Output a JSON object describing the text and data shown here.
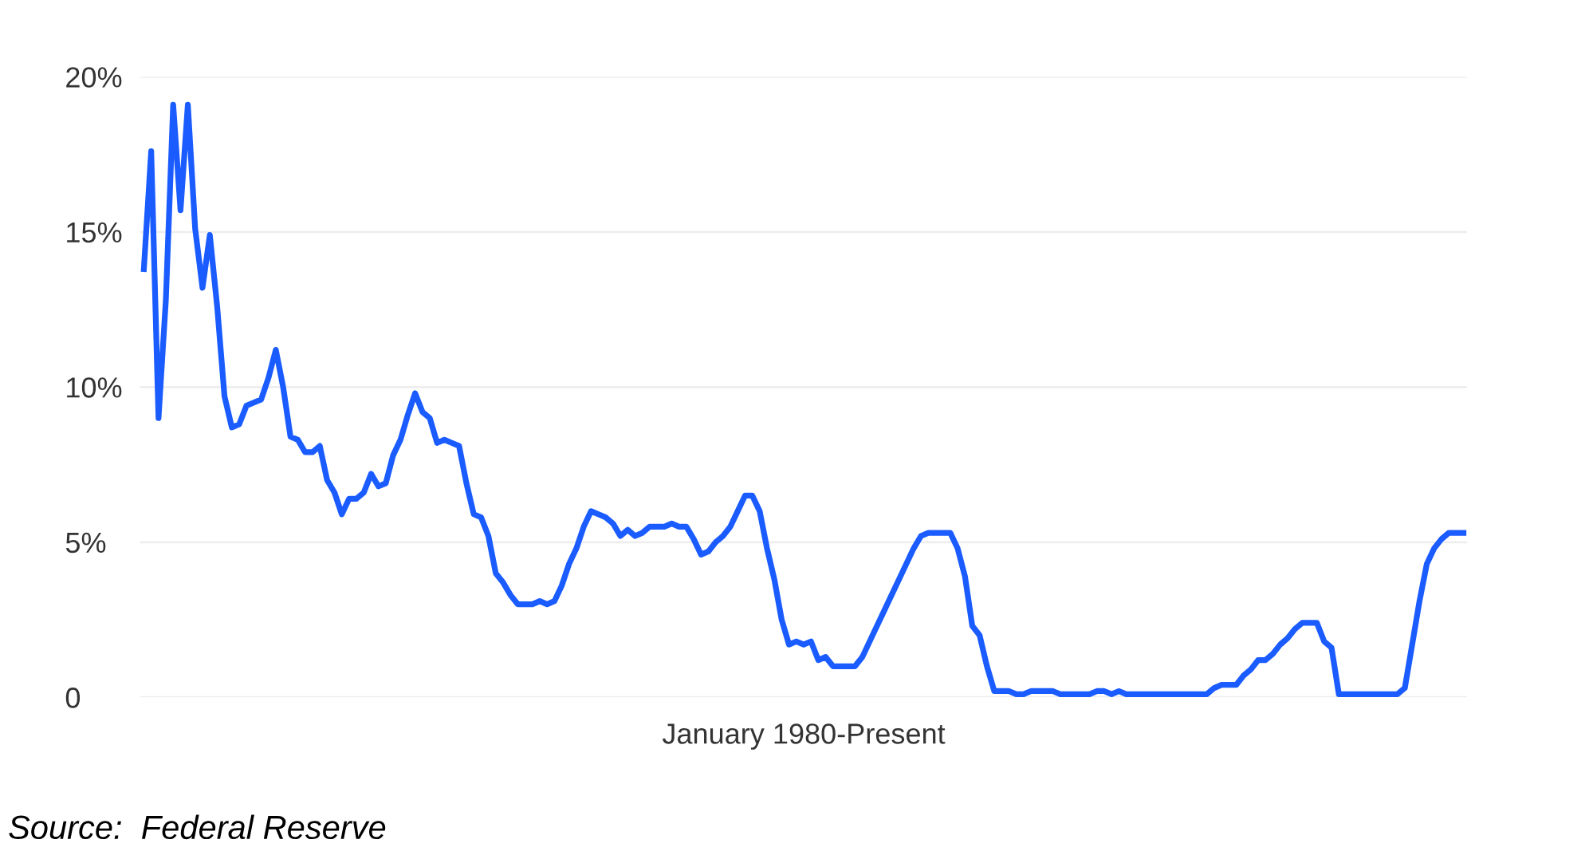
{
  "chart_data": {
    "type": "line",
    "xlabel": "January 1980-Present",
    "annotations": [
      "Source:  Federal Reserve"
    ],
    "categories": [
      null,
      null,
      null,
      null,
      null,
      null,
      null,
      null,
      null,
      null,
      null,
      null,
      null,
      null,
      null,
      null,
      null,
      null,
      null,
      null,
      null,
      null,
      null,
      null,
      null,
      null,
      null,
      null,
      null,
      null,
      null,
      null,
      null,
      null,
      null,
      null,
      null,
      null,
      null,
      null,
      null,
      null,
      null,
      null,
      null,
      null,
      null,
      null,
      null,
      null,
      null,
      null,
      null,
      null,
      null,
      null,
      null,
      null,
      null,
      null,
      null,
      null,
      null,
      null,
      null,
      null,
      null,
      null,
      null,
      null,
      null,
      null,
      null,
      null,
      null,
      null,
      null,
      null,
      null,
      null,
      null,
      null,
      null,
      null,
      null,
      null,
      null,
      null,
      null,
      null,
      null,
      null,
      null,
      null,
      null,
      null,
      null,
      null,
      null,
      null,
      null,
      null,
      null,
      null,
      null,
      null,
      null,
      null,
      null,
      null,
      null,
      null,
      null,
      null,
      null,
      null,
      null,
      null,
      null,
      null,
      null,
      null,
      null,
      null,
      null,
      null,
      null,
      null,
      null,
      null,
      null,
      null,
      null,
      null,
      null,
      null,
      null,
      null,
      null,
      null,
      null,
      null,
      null,
      null,
      null,
      null,
      null,
      null,
      null,
      null,
      null,
      null,
      null,
      null,
      null,
      null,
      null,
      null,
      null,
      null,
      null,
      null,
      null,
      null,
      null,
      null,
      null,
      null,
      null,
      null,
      null,
      null,
      null,
      null,
      null,
      null,
      null,
      null,
      null,
      null,
      null
    ],
    "series": [
      {
        "color": "#1a5cff",
        "values": [
          13.8,
          17.6,
          9.0,
          12.8,
          19.1,
          15.7,
          19.1,
          15.1,
          13.2,
          14.9,
          12.6,
          9.7,
          8.7,
          8.8,
          9.4,
          9.5,
          9.6,
          10.3,
          11.2,
          10.0,
          8.4,
          8.3,
          7.9,
          7.9,
          8.1,
          7.0,
          6.6,
          5.9,
          6.4,
          6.4,
          6.6,
          7.2,
          6.8,
          6.9,
          7.8,
          8.3,
          9.1,
          9.8,
          9.2,
          9.0,
          8.2,
          8.3,
          8.2,
          8.1,
          6.9,
          5.9,
          5.8,
          5.2,
          4.0,
          3.7,
          3.3,
          3.0,
          3.0,
          3.0,
          3.1,
          3.0,
          3.1,
          3.6,
          4.3,
          4.8,
          5.5,
          6.0,
          5.9,
          5.8,
          5.6,
          5.2,
          5.4,
          5.2,
          5.3,
          5.5,
          5.5,
          5.5,
          5.6,
          5.5,
          5.5,
          5.1,
          4.6,
          4.7,
          5.0,
          5.2,
          5.5,
          6.0,
          6.5,
          6.5,
          6.0,
          4.8,
          3.8,
          2.5,
          1.7,
          1.8,
          1.7,
          1.8,
          1.2,
          1.3,
          1.0,
          1.0,
          1.0,
          1.0,
          1.3,
          1.8,
          2.3,
          2.8,
          3.3,
          3.8,
          4.3,
          4.8,
          5.2,
          5.3,
          5.3,
          5.3,
          5.3,
          4.8,
          3.9,
          2.3,
          2.0,
          1.0,
          0.2,
          0.2,
          0.2,
          0.1,
          0.1,
          0.2,
          0.2,
          0.2,
          0.2,
          0.1,
          0.1,
          0.1,
          0.1,
          0.1,
          0.2,
          0.2,
          0.1,
          0.2,
          0.1,
          0.1,
          0.1,
          0.1,
          0.1,
          0.1,
          0.1,
          0.1,
          0.1,
          0.1,
          0.1,
          0.1,
          0.3,
          0.4,
          0.4,
          0.4,
          0.7,
          0.9,
          1.2,
          1.2,
          1.4,
          1.7,
          1.9,
          2.2,
          2.4,
          2.4,
          2.4,
          1.8,
          1.6,
          0.1,
          0.1,
          0.1,
          0.1,
          0.1,
          0.1,
          0.1,
          0.1,
          0.1,
          0.3,
          1.7,
          3.1,
          4.3,
          4.8,
          5.1,
          5.3,
          5.3,
          5.3
        ]
      }
    ],
    "ylim": [
      0,
      20
    ],
    "yticks": [
      {
        "value": 0,
        "label": "0"
      },
      {
        "value": 5,
        "label": "5%"
      },
      {
        "value": 10,
        "label": "10%"
      },
      {
        "value": 15,
        "label": "15%"
      },
      {
        "value": 20,
        "label": "20%"
      }
    ],
    "grid": "y",
    "legend": false,
    "marker": "none",
    "line_style": "solid"
  }
}
